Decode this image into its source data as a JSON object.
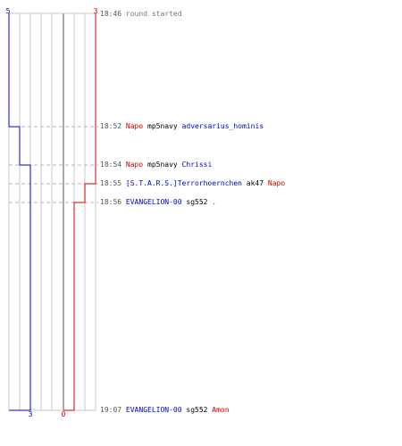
{
  "start": {
    "time": "18:46",
    "text": "round started"
  },
  "score": {
    "blue_start": "5",
    "red_start": "3",
    "blue_end": "3",
    "red_end": "0"
  },
  "colors": {
    "blue": "#0000cc",
    "red": "#cc0000",
    "gray": "#999999",
    "darkgray": "#555555",
    "grid": "#c8c8c8",
    "dash": "#b4b4b4",
    "text": "#000000"
  },
  "events": [
    {
      "time": "18:52",
      "killer": "Napo",
      "killer_team": "red",
      "weapon": "mp5navy",
      "victim": "adversarius_hominis",
      "victim_team": "blue"
    },
    {
      "time": "18:54",
      "killer": "Napo",
      "killer_team": "red",
      "weapon": "mp5navy",
      "victim": "Chrissi",
      "victim_team": "blue"
    },
    {
      "time": "18:55",
      "killer": "[S.T.A.R.S.]Terrorhoernchen",
      "killer_team": "blue",
      "weapon": "ak47",
      "victim": "Napo",
      "victim_team": "red"
    },
    {
      "time": "18:56",
      "killer": "EVANGELION-00",
      "killer_team": "blue",
      "weapon": "sg552",
      "victim": ".",
      "victim_team": "red"
    },
    {
      "time": "19:07",
      "killer": "EVANGELION-00",
      "killer_team": "blue",
      "weapon": "sg552",
      "victim": "Amon",
      "victim_team": "red"
    }
  ]
}
